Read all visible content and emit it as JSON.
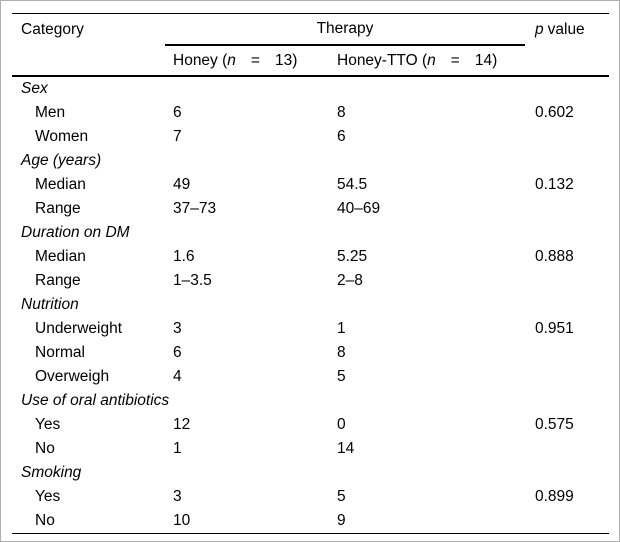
{
  "table": {
    "header": {
      "category": "Category",
      "therapy": "Therapy",
      "p_italic": "p",
      "p_rest": "value",
      "honey": {
        "prefix": "Honey (",
        "n": "n",
        "eq": "=",
        "count": "13)"
      },
      "honey_tto": {
        "prefix": "Honey-TTO (",
        "n": "n",
        "eq": "=",
        "count": "14)"
      }
    },
    "sections": [
      {
        "label": "Sex",
        "rows": [
          {
            "label": "Men",
            "honey": "6",
            "honey_tto": "8",
            "p": "0.602"
          },
          {
            "label": "Women",
            "honey": "7",
            "honey_tto": "6",
            "p": ""
          }
        ]
      },
      {
        "label": "Age (years)",
        "rows": [
          {
            "label": "Median",
            "honey": "49",
            "honey_tto": "54.5",
            "p": "0.132"
          },
          {
            "label": "Range",
            "honey": "37–73",
            "honey_tto": "40–69",
            "p": ""
          }
        ]
      },
      {
        "label": "Duration on DM",
        "rows": [
          {
            "label": "Median",
            "honey": "1.6",
            "honey_tto": "5.25",
            "p": "0.888"
          },
          {
            "label": "Range",
            "honey": "1–3.5",
            "honey_tto": "2–8",
            "p": ""
          }
        ]
      },
      {
        "label": "Nutrition",
        "rows": [
          {
            "label": "Underweight",
            "honey": "3",
            "honey_tto": "1",
            "p": "0.951"
          },
          {
            "label": "Normal",
            "honey": "6",
            "honey_tto": "8",
            "p": ""
          },
          {
            "label": "Overweigh",
            "honey": "4",
            "honey_tto": "5",
            "p": ""
          }
        ]
      },
      {
        "label": "Use of oral antibiotics",
        "rows": [
          {
            "label": "Yes",
            "honey": "12",
            "honey_tto": "0",
            "p": "0.575"
          },
          {
            "label": "No",
            "honey": "1",
            "honey_tto": "14",
            "p": ""
          }
        ]
      },
      {
        "label": "Smoking",
        "rows": [
          {
            "label": "Yes",
            "honey": "3",
            "honey_tto": "5",
            "p": "0.899"
          },
          {
            "label": "No",
            "honey": "10",
            "honey_tto": "9",
            "p": ""
          }
        ]
      }
    ]
  },
  "colors": {
    "text": "#000000",
    "rule": "#000000",
    "outer_border": "#aeaeae",
    "background": "#ffffff"
  }
}
